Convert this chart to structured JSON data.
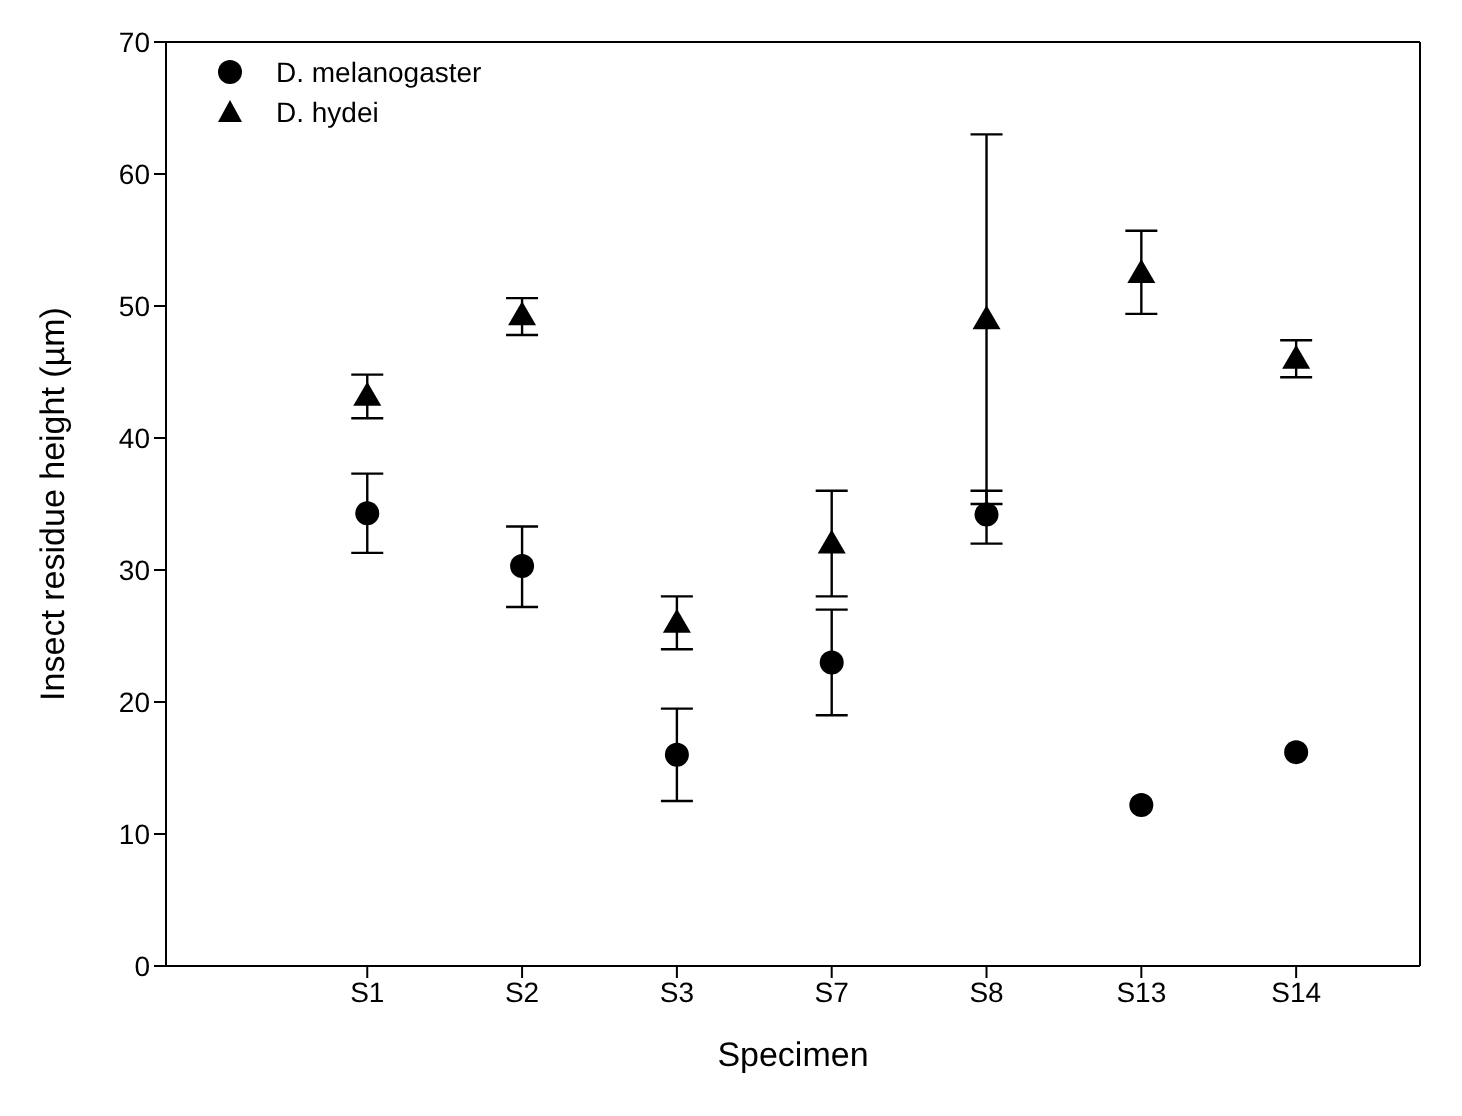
{
  "chart_data": {
    "type": "scatter",
    "xlabel": "Specimen",
    "ylabel": "Insect residue height (µm)",
    "categories": [
      "S1",
      "S2",
      "S3",
      "S7",
      "S8",
      "S13",
      "S14"
    ],
    "series": [
      {
        "name": "D. melanogaster",
        "color": "#000000",
        "marker": "circle",
        "values": [
          34.3,
          30.3,
          16,
          23,
          34.2,
          12.2,
          16.2
        ],
        "errors": [
          [
            31.3,
            37.3
          ],
          [
            27.2,
            33.3
          ],
          [
            12.5,
            19.5
          ],
          [
            19,
            27
          ],
          [
            32,
            36
          ],
          null,
          null
        ]
      },
      {
        "name": "D. hydei",
        "color": "#000000",
        "marker": "triangle",
        "values": [
          43.2,
          49.3,
          26,
          32,
          49,
          52.5,
          46
        ],
        "errors": [
          [
            41.5,
            44.8
          ],
          [
            47.8,
            50.6
          ],
          [
            24,
            28
          ],
          [
            28,
            36
          ],
          [
            35,
            63
          ],
          [
            49.4,
            55.7
          ],
          [
            44.6,
            47.4
          ]
        ]
      }
    ],
    "ylim": [
      0,
      70
    ],
    "yticks": [
      0,
      10,
      20,
      30,
      40,
      50,
      60,
      70
    ],
    "grid": false,
    "legend": "top left"
  }
}
